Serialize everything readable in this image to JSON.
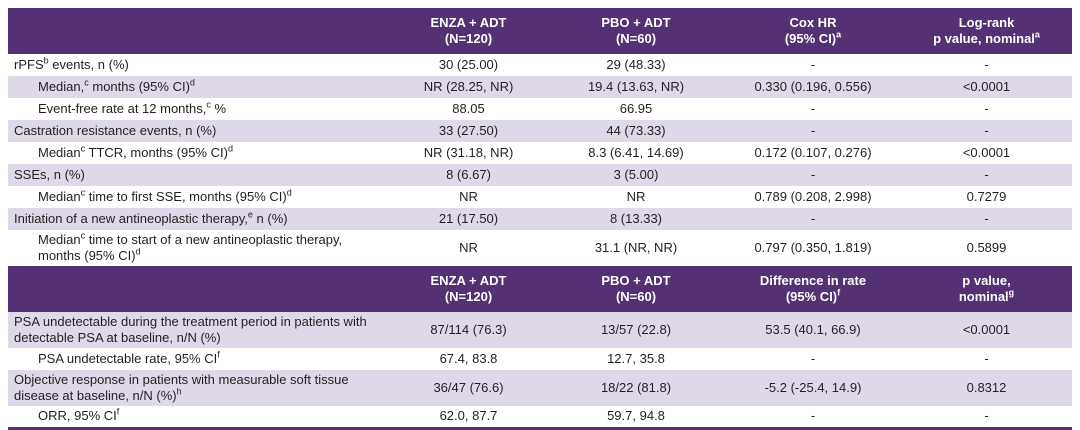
{
  "colors": {
    "header_bg": "#543174",
    "header_text": "#ffffff",
    "row_alt_bg": "#ded8e9",
    "row_bg": "#ffffff",
    "body_text": "#231f20",
    "bottom_border": "#543174"
  },
  "table": {
    "sections": [
      {
        "headers": [
          {
            "lines": [
              ""
            ]
          },
          {
            "lines": [
              "ENZA + ADT",
              "(N=120)"
            ]
          },
          {
            "lines": [
              "PBO + ADT",
              "(N=60)"
            ]
          },
          {
            "lines": [
              "Cox HR",
              "(95% CI)^a^"
            ]
          },
          {
            "lines": [
              "Log-rank",
              "p value, nominal^a^"
            ]
          }
        ],
        "rows": [
          {
            "label": "rPFS^b^ events, n (%)",
            "indent": false,
            "cells": [
              "30 (25.00)",
              "29 (48.33)",
              "-",
              "-"
            ]
          },
          {
            "label": "Median,^c^ months (95% CI)^d^",
            "indent": true,
            "cells": [
              "NR (28.25, NR)",
              "19.4 (13.63, NR)",
              "0.330 (0.196, 0.556)",
              "<0.0001"
            ]
          },
          {
            "label": "Event-free rate at 12 months,^c^ %",
            "indent": true,
            "cells": [
              "88.05",
              "66.95",
              "-",
              "-"
            ]
          },
          {
            "label": "Castration resistance events, n (%)",
            "indent": false,
            "cells": [
              "33 (27.50)",
              "44 (73.33)",
              "-",
              "-"
            ]
          },
          {
            "label": "Median^c^ TTCR, months (95% CI)^d^",
            "indent": true,
            "cells": [
              "NR (31.18, NR)",
              "8.3 (6.41, 14.69)",
              "0.172 (0.107, 0.276)",
              "<0.0001"
            ]
          },
          {
            "label": "SSEs, n (%)",
            "indent": false,
            "cells": [
              "8 (6.67)",
              "3 (5.00)",
              "-",
              "-"
            ]
          },
          {
            "label": "Median^c^ time to first SSE, months (95% CI)^d^",
            "indent": true,
            "cells": [
              "NR",
              "NR",
              "0.789 (0.208, 2.998)",
              "0.7279"
            ]
          },
          {
            "label": "Initiation of a new antineoplastic therapy,^e^ n (%)",
            "indent": false,
            "cells": [
              "21 (17.50)",
              "8 (13.33)",
              "-",
              "-"
            ]
          },
          {
            "label": "Median^c^ time to start of a new antineoplastic therapy, months (95% CI)^d^",
            "indent": true,
            "cells": [
              "NR",
              "31.1 (NR, NR)",
              "0.797 (0.350, 1.819)",
              "0.5899"
            ]
          }
        ]
      },
      {
        "headers": [
          {
            "lines": [
              ""
            ]
          },
          {
            "lines": [
              "ENZA + ADT",
              "(N=120)"
            ]
          },
          {
            "lines": [
              "PBO + ADT",
              "(N=60)"
            ]
          },
          {
            "lines": [
              "Difference in rate",
              "(95% CI)^f^"
            ]
          },
          {
            "lines": [
              "p value,",
              "nominal^g^"
            ]
          }
        ],
        "rows": [
          {
            "label": "PSA undetectable during the treatment period in patients with detectable PSA at baseline, n/N (%)",
            "indent": false,
            "cells": [
              "87/114 (76.3)",
              "13/57 (22.8)",
              "53.5 (40.1, 66.9)",
              "<0.0001"
            ]
          },
          {
            "label": "PSA undetectable rate, 95% CI^f^",
            "indent": true,
            "cells": [
              "67.4, 83.8",
              "12.7, 35.8",
              "-",
              "-"
            ]
          },
          {
            "label": "Objective response in patients with measurable soft tissue disease at baseline, n/N (%)^h^",
            "indent": false,
            "cells": [
              "36/47 (76.6)",
              "18/22 (81.8)",
              "-5.2 (-25.4, 14.9)",
              "0.8312"
            ]
          },
          {
            "label": "ORR, 95% CI^f^",
            "indent": true,
            "cells": [
              "62.0, 87.7",
              "59.7, 94.8",
              "-",
              "-"
            ]
          }
        ]
      }
    ]
  }
}
